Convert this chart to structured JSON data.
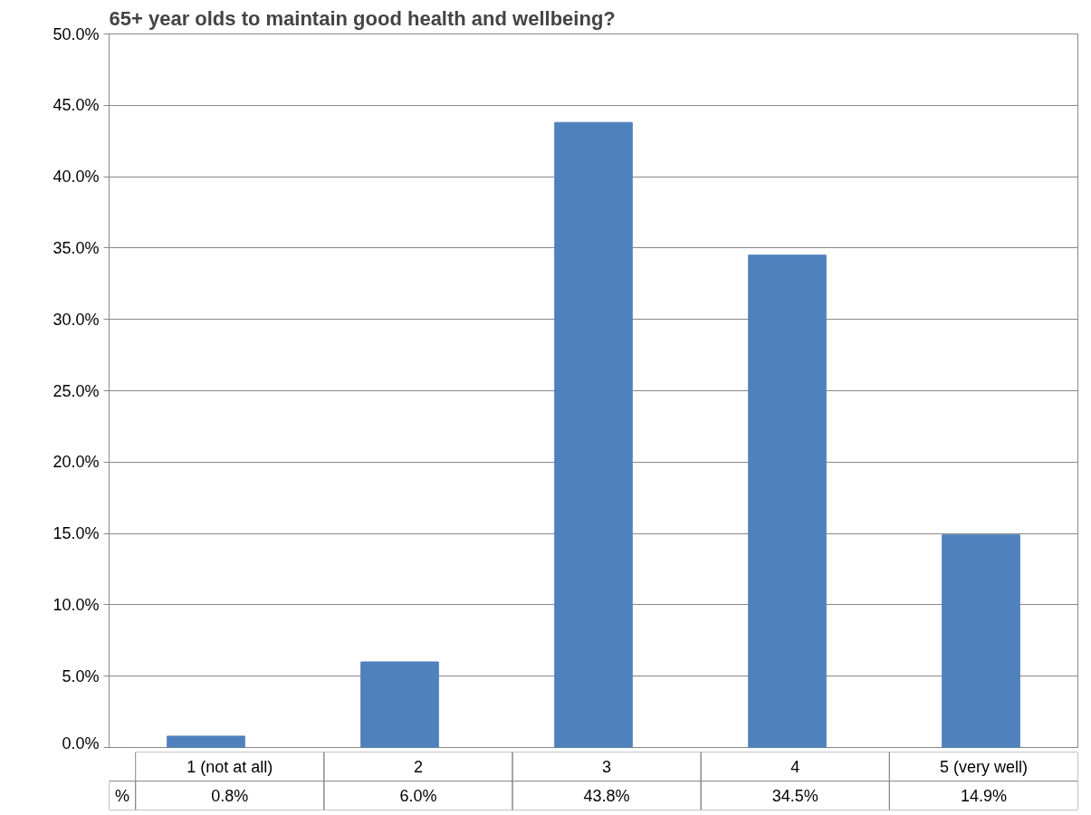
{
  "chart_data": {
    "type": "bar",
    "title": "65+ year olds to maintain good health and wellbeing?",
    "categories": [
      "1 (not at all)",
      "2",
      "3",
      "4",
      "5 (very well)"
    ],
    "series": [
      {
        "name": "%",
        "color": "#4f81bd",
        "values": [
          0.8,
          6.0,
          43.8,
          34.5,
          14.9
        ],
        "value_labels": [
          "0.8%",
          "6.0%",
          "43.8%",
          "34.5%",
          "14.9%"
        ]
      }
    ],
    "ylim": [
      0,
      50
    ],
    "yticks": [
      {
        "value": 0,
        "label": "0.0%"
      },
      {
        "value": 5,
        "label": "5.0%"
      },
      {
        "value": 10,
        "label": "10.0%"
      },
      {
        "value": 15,
        "label": "15.0%"
      },
      {
        "value": 20,
        "label": "20.0%"
      },
      {
        "value": 25,
        "label": "25.0%"
      },
      {
        "value": 30,
        "label": "30.0%"
      },
      {
        "value": 35,
        "label": "35.0%"
      },
      {
        "value": 40,
        "label": "40.0%"
      },
      {
        "value": 45,
        "label": "45.0%"
      },
      {
        "value": 50,
        "label": "50.0%"
      }
    ],
    "grid": "y"
  }
}
